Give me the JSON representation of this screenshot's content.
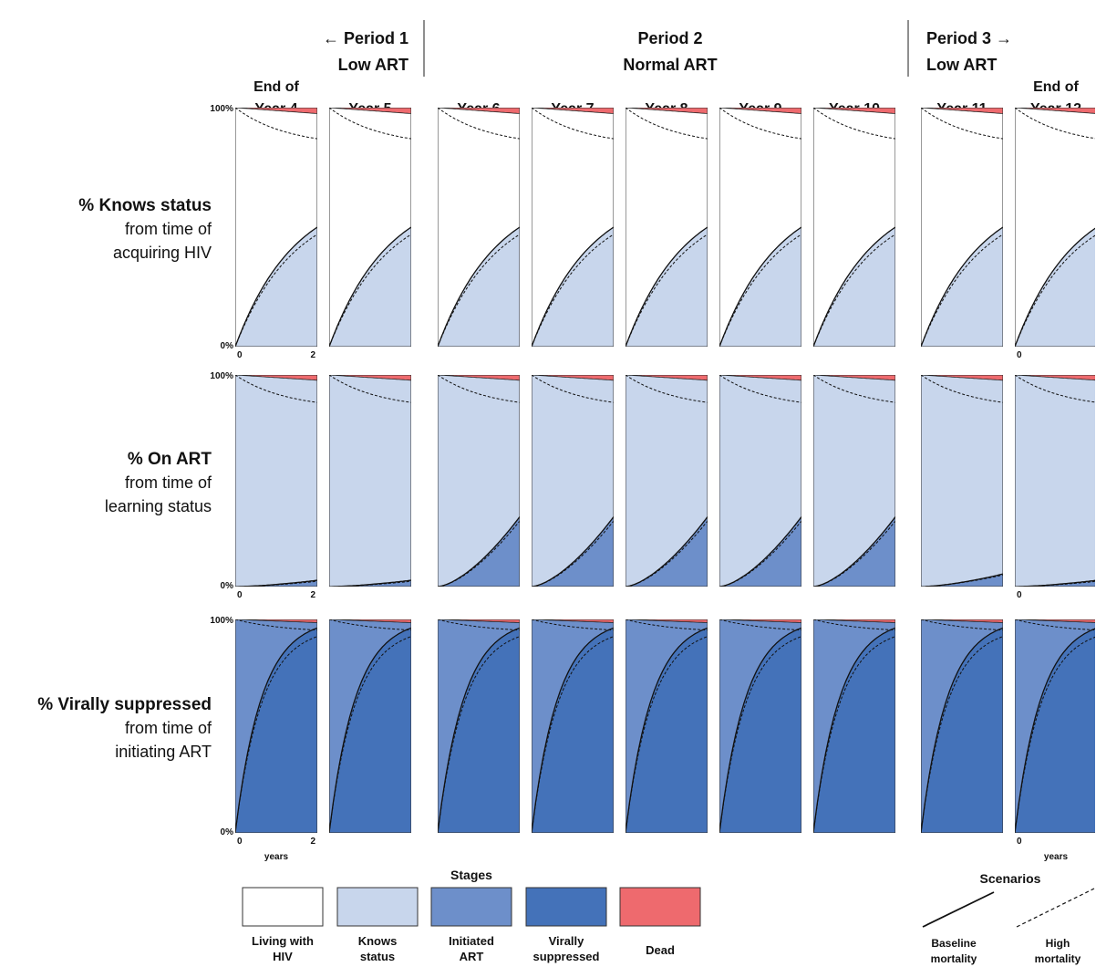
{
  "chart_data": {
    "type": "area",
    "periods": [
      {
        "line1": "← Period 1",
        "line2": "Low ART"
      },
      {
        "line1": "Period 2",
        "line2": "Normal ART"
      },
      {
        "line1": "Period 3 →",
        "line2": "Low ART"
      }
    ],
    "columns": [
      {
        "line1": "End of",
        "line2": "Year 4",
        "period": 1
      },
      {
        "line1": "",
        "line2": "Year 5",
        "period": 1
      },
      {
        "line1": "",
        "line2": "Year 6",
        "period": 2
      },
      {
        "line1": "",
        "line2": "Year 7",
        "period": 2
      },
      {
        "line1": "",
        "line2": "Year 8",
        "period": 2
      },
      {
        "line1": "",
        "line2": "Year 9",
        "period": 2
      },
      {
        "line1": "",
        "line2": "Year 10",
        "period": 2
      },
      {
        "line1": "",
        "line2": "Year 11",
        "period": 3
      },
      {
        "line1": "End of",
        "line2": "Year 12",
        "period": 3
      }
    ],
    "rows": [
      {
        "title": "% Knows status",
        "sub1": "from time of",
        "sub2": "acquiring HIV"
      },
      {
        "title": "% On ART",
        "sub1": "from time of",
        "sub2": "learning status"
      },
      {
        "title": "% Virally suppressed",
        "sub1": "from time of",
        "sub2": "initiating ART"
      }
    ],
    "y_ticks": {
      "top": "100%",
      "bottom": "0%"
    },
    "x_ticks": {
      "start": "0",
      "end": "2"
    },
    "x_unit": "years",
    "xlim": [
      0,
      2
    ],
    "ylim": [
      0,
      100
    ],
    "curves": {
      "knows": {
        "solid_end": 50,
        "dashed_end": 47,
        "death_end": 2.5,
        "high_mortality_end": 13
      },
      "onart_low": {
        "solid_end": 3,
        "dashed_end": 2.5,
        "death_end": 2.5,
        "high_mortality_end": 13
      },
      "onart_low_y11": {
        "solid_end": 6,
        "dashed_end": 5.5,
        "death_end": 2.5,
        "high_mortality_end": 13
      },
      "onart_normal": {
        "solid_end": 33,
        "dashed_end": 31,
        "death_end": 2.5,
        "high_mortality_end": 13
      },
      "suppressed": {
        "solid_end": 96,
        "dashed_end": 92,
        "death_end": 1.5,
        "high_mortality_end": 5
      }
    },
    "row_curve_keys": [
      [
        "knows",
        "knows",
        "knows",
        "knows",
        "knows",
        "knows",
        "knows",
        "knows",
        "knows"
      ],
      [
        "onart_low",
        "onart_low",
        "onart_normal",
        "onart_normal",
        "onart_normal",
        "onart_normal",
        "onart_normal",
        "onart_low_y11",
        "onart_low"
      ],
      [
        "suppressed",
        "suppressed",
        "suppressed",
        "suppressed",
        "suppressed",
        "suppressed",
        "suppressed",
        "suppressed",
        "suppressed"
      ]
    ],
    "colors": {
      "living": "#FFFFFF",
      "knows": "#C8D6EC",
      "initiated": "#6D8FCA",
      "suppressed": "#4472B9",
      "dead": "#EE6A6E"
    },
    "legend": {
      "stages_title": "Stages",
      "stages": [
        {
          "line1": "Living with",
          "line2": "HIV",
          "color": "#FFFFFF"
        },
        {
          "line1": "Knows",
          "line2": "status",
          "color": "#C8D6EC"
        },
        {
          "line1": "Initiated",
          "line2": "ART",
          "color": "#6D8FCA"
        },
        {
          "line1": "Virally",
          "line2": "suppressed",
          "color": "#4472B9"
        },
        {
          "line1": "Dead",
          "line2": "",
          "color": "#EE6A6E"
        }
      ],
      "scenarios_title": "Scenarios",
      "scenarios": [
        {
          "line1": "Baseline",
          "line2": "mortality",
          "style": "solid"
        },
        {
          "line1": "High",
          "line2": "mortality",
          "style": "dashed"
        }
      ]
    }
  }
}
